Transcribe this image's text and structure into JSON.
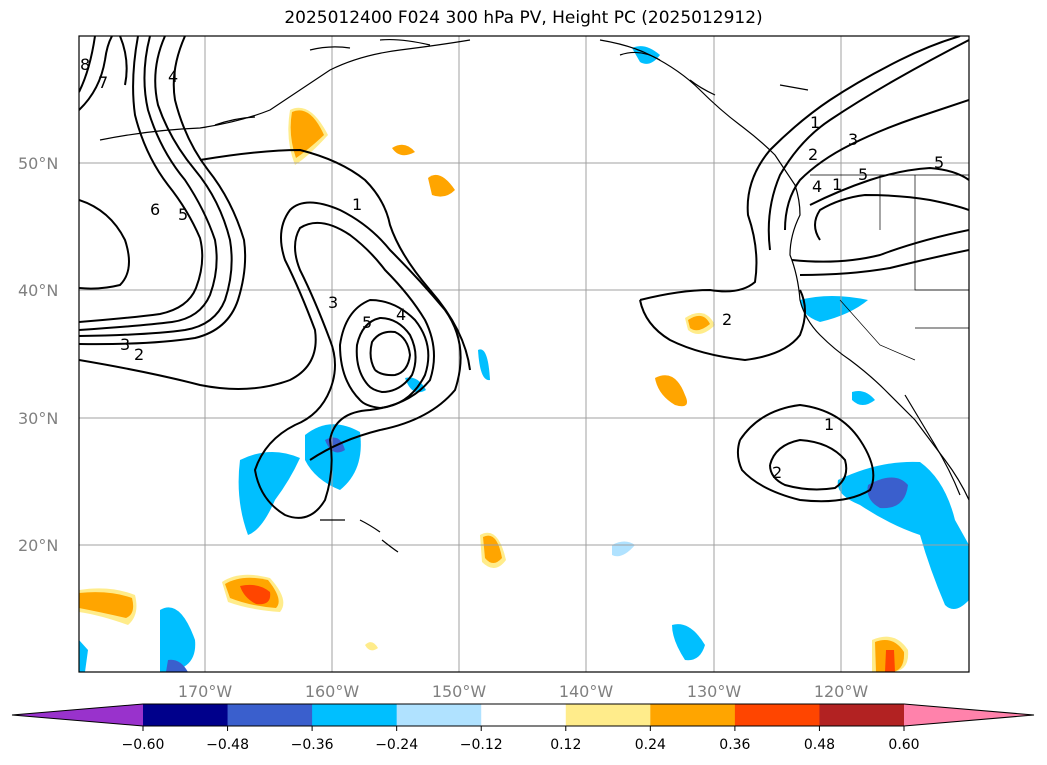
{
  "title": "2025012400 F024 300 hPa PV, Height PC (2025012912)",
  "lat_labels": [
    "50°N",
    "40°N",
    "30°N",
    "20°N"
  ],
  "lon_labels": [
    "170°W",
    "160°W",
    "150°W",
    "140°W",
    "130°W",
    "120°W"
  ],
  "contour_labels": [
    "8",
    "7",
    "4",
    "6",
    "5",
    "1",
    "3",
    "3",
    "2",
    "5",
    "4",
    "1",
    "2",
    "3",
    "4",
    "1",
    "5",
    "5",
    "2",
    "1",
    "2"
  ],
  "colorbar": {
    "ticks": [
      "−0.60",
      "−0.48",
      "−0.36",
      "−0.24",
      "−0.12",
      "0.12",
      "0.24",
      "0.36",
      "0.48",
      "0.60"
    ],
    "colors": [
      "#9932cc",
      "#00008b",
      "#3a5fcd",
      "#00bfff",
      "#b0e2ff",
      "#ffffff",
      "#ffec8b",
      "#ffa500",
      "#ff4500",
      "#b22222",
      "#ff82ab"
    ]
  },
  "colors": {
    "gridlines": "#a0a0a0",
    "contours": "#000000",
    "coastline": "#000000"
  }
}
